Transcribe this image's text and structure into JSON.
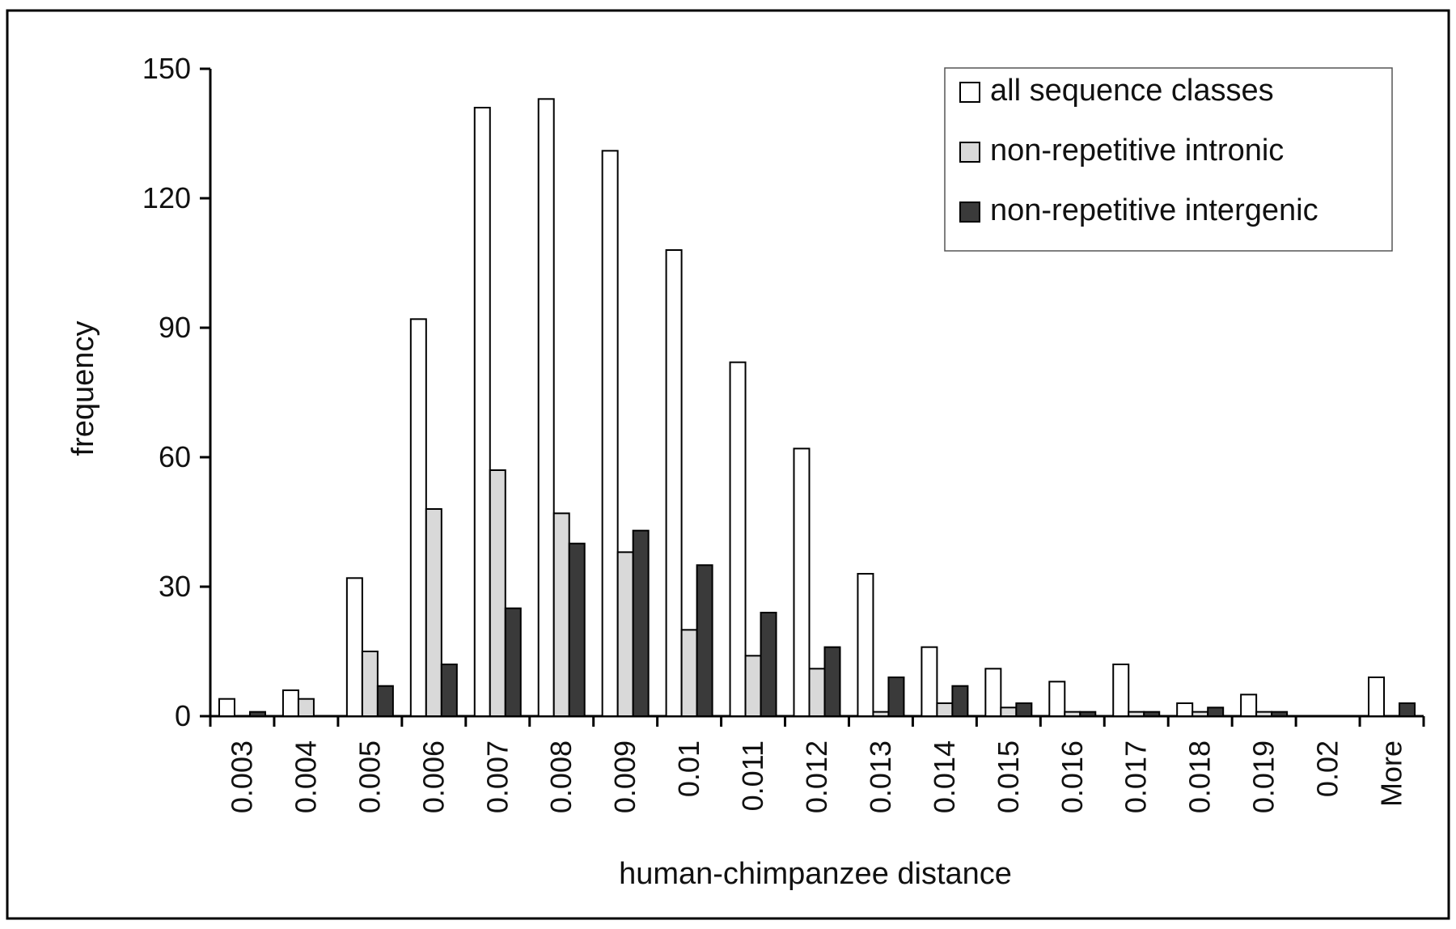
{
  "chart_data": {
    "type": "bar",
    "xlabel": "human-chimpanzee distance",
    "ylabel": "frequency",
    "ylim": [
      0,
      150
    ],
    "yticks": [
      0,
      30,
      60,
      90,
      120,
      150
    ],
    "categories": [
      "0.003",
      "0.004",
      "0.005",
      "0.006",
      "0.007",
      "0.008",
      "0.009",
      "0.01",
      "0.011",
      "0.012",
      "0.013",
      "0.014",
      "0.015",
      "0.016",
      "0.017",
      "0.018",
      "0.019",
      "0.02",
      "More"
    ],
    "series": [
      {
        "name": "all sequence classes",
        "color": "#ffffff",
        "values": [
          4,
          6,
          32,
          92,
          141,
          143,
          131,
          108,
          82,
          62,
          33,
          16,
          11,
          8,
          12,
          3,
          5,
          0,
          9
        ]
      },
      {
        "name": "non-repetitive intronic",
        "color": "#d9d9d9",
        "values": [
          0,
          4,
          15,
          48,
          57,
          47,
          38,
          20,
          14,
          11,
          1,
          3,
          2,
          1,
          1,
          1,
          1,
          0,
          0
        ]
      },
      {
        "name": "non-repetitive intergenic",
        "color": "#3a3a3a",
        "values": [
          1,
          0,
          7,
          12,
          25,
          40,
          43,
          35,
          24,
          16,
          9,
          7,
          3,
          1,
          1,
          2,
          1,
          0,
          3
        ]
      }
    ],
    "legend": "top-right",
    "grid": false
  }
}
